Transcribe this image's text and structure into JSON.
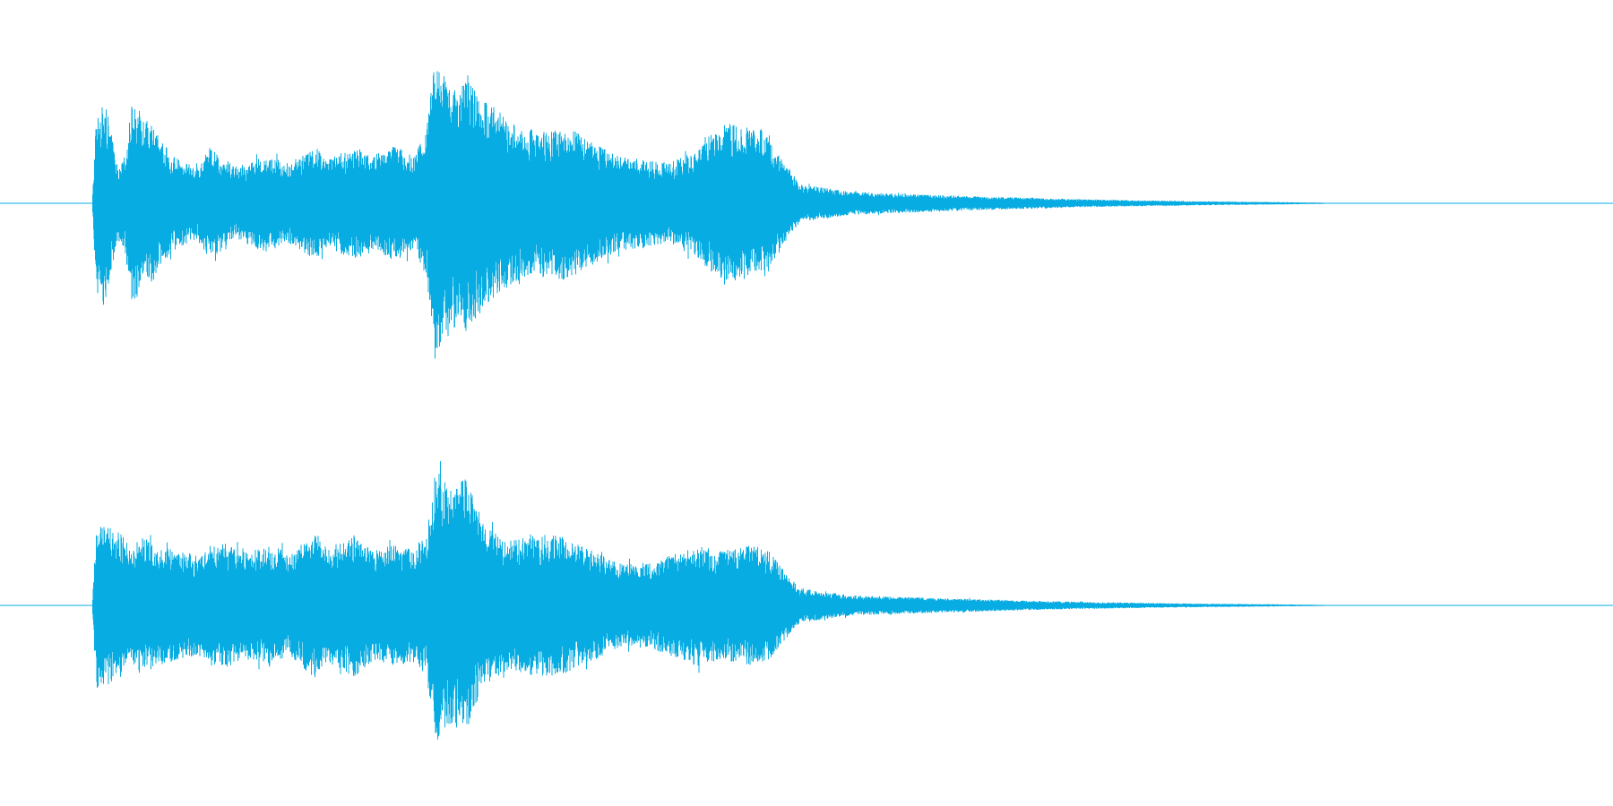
{
  "waveform": {
    "color": "#06ace2",
    "background": "#ffffff",
    "channels": [
      {
        "id": "channel-1",
        "envelope": [
          [
            0.0,
            0.0
          ],
          [
            0.003,
            0.55
          ],
          [
            0.01,
            0.62
          ],
          [
            0.02,
            0.2
          ],
          [
            0.025,
            0.3
          ],
          [
            0.03,
            0.62
          ],
          [
            0.045,
            0.5
          ],
          [
            0.06,
            0.3
          ],
          [
            0.08,
            0.22
          ],
          [
            0.09,
            0.35
          ],
          [
            0.11,
            0.22
          ],
          [
            0.13,
            0.3
          ],
          [
            0.15,
            0.25
          ],
          [
            0.17,
            0.35
          ],
          [
            0.18,
            0.28
          ],
          [
            0.2,
            0.35
          ],
          [
            0.215,
            0.3
          ],
          [
            0.23,
            0.36
          ],
          [
            0.245,
            0.3
          ],
          [
            0.255,
            0.45
          ],
          [
            0.262,
            1.0
          ],
          [
            0.27,
            0.75
          ],
          [
            0.285,
            0.8
          ],
          [
            0.3,
            0.65
          ],
          [
            0.32,
            0.5
          ],
          [
            0.34,
            0.45
          ],
          [
            0.36,
            0.48
          ],
          [
            0.38,
            0.4
          ],
          [
            0.4,
            0.3
          ],
          [
            0.42,
            0.28
          ],
          [
            0.44,
            0.25
          ],
          [
            0.46,
            0.32
          ],
          [
            0.48,
            0.5
          ],
          [
            0.5,
            0.48
          ],
          [
            0.515,
            0.45
          ],
          [
            0.525,
            0.3
          ],
          [
            0.54,
            0.12
          ],
          [
            0.58,
            0.07
          ],
          [
            0.65,
            0.05
          ],
          [
            0.75,
            0.025
          ],
          [
            0.85,
            0.012
          ],
          [
            0.9,
            0.008
          ],
          [
            0.94,
            0.004
          ],
          [
            0.941,
            0.0
          ],
          [
            1.0,
            0.0
          ]
        ]
      },
      {
        "id": "channel-2",
        "envelope": [
          [
            0.0,
            0.0
          ],
          [
            0.003,
            0.6
          ],
          [
            0.02,
            0.52
          ],
          [
            0.03,
            0.4
          ],
          [
            0.035,
            0.48
          ],
          [
            0.06,
            0.4
          ],
          [
            0.08,
            0.35
          ],
          [
            0.1,
            0.45
          ],
          [
            0.12,
            0.38
          ],
          [
            0.14,
            0.42
          ],
          [
            0.15,
            0.35
          ],
          [
            0.17,
            0.52
          ],
          [
            0.18,
            0.4
          ],
          [
            0.2,
            0.5
          ],
          [
            0.215,
            0.38
          ],
          [
            0.23,
            0.42
          ],
          [
            0.245,
            0.4
          ],
          [
            0.255,
            0.5
          ],
          [
            0.262,
            0.95
          ],
          [
            0.275,
            0.85
          ],
          [
            0.285,
            0.88
          ],
          [
            0.3,
            0.55
          ],
          [
            0.32,
            0.45
          ],
          [
            0.34,
            0.5
          ],
          [
            0.36,
            0.48
          ],
          [
            0.38,
            0.4
          ],
          [
            0.4,
            0.3
          ],
          [
            0.42,
            0.28
          ],
          [
            0.44,
            0.35
          ],
          [
            0.46,
            0.42
          ],
          [
            0.48,
            0.38
          ],
          [
            0.5,
            0.42
          ],
          [
            0.515,
            0.4
          ],
          [
            0.525,
            0.28
          ],
          [
            0.54,
            0.12
          ],
          [
            0.58,
            0.07
          ],
          [
            0.65,
            0.05
          ],
          [
            0.75,
            0.025
          ],
          [
            0.85,
            0.012
          ],
          [
            0.9,
            0.008
          ],
          [
            0.94,
            0.004
          ],
          [
            0.941,
            0.0
          ],
          [
            1.0,
            0.0
          ]
        ]
      }
    ]
  }
}
